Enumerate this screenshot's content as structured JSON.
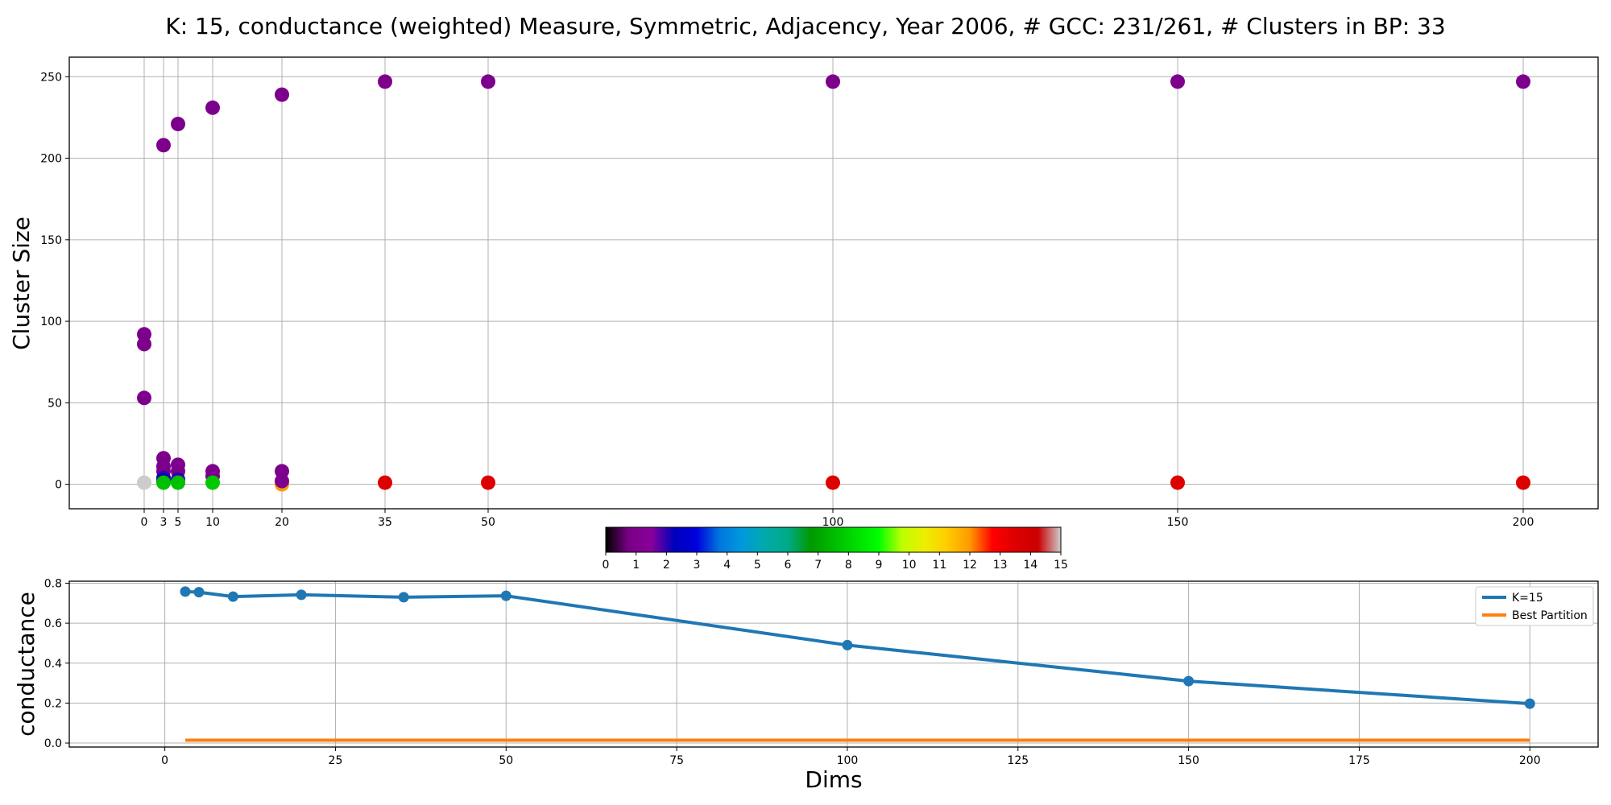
{
  "chart_data": [
    {
      "type": "scatter",
      "title": "K: 15, conductance (weighted) Measure, Symmetric, Adjacency, Year 2006, # GCC: 231/261, # Clusters in BP: 33",
      "xlabel": "",
      "ylabel": "Cluster Size",
      "xticks": [
        0,
        3,
        5,
        10,
        20,
        35,
        50,
        100,
        150,
        200
      ],
      "yticks": [
        0,
        50,
        100,
        150,
        200,
        250
      ],
      "ylim": [
        -15,
        262
      ],
      "grid": true,
      "colorbar": {
        "min": 0,
        "max": 15,
        "ticks": [
          0,
          1,
          2,
          3,
          4,
          5,
          6,
          7,
          8,
          9,
          10,
          11,
          12,
          13,
          14,
          15
        ],
        "colormap": "nipy_spectral"
      },
      "points": [
        {
          "x": 0,
          "y": 92,
          "c": 1
        },
        {
          "x": 0,
          "y": 86,
          "c": 1
        },
        {
          "x": 0,
          "y": 53,
          "c": 1
        },
        {
          "x": 0,
          "y": 1,
          "c": 15
        },
        {
          "x": 3,
          "y": 208,
          "c": 1
        },
        {
          "x": 3,
          "y": 16,
          "c": 1
        },
        {
          "x": 3,
          "y": 11,
          "c": 1
        },
        {
          "x": 3,
          "y": 8,
          "c": 1
        },
        {
          "x": 3,
          "y": 4,
          "c": 2
        },
        {
          "x": 3,
          "y": 2,
          "c": 2.3
        },
        {
          "x": 3,
          "y": 1,
          "c": 7.6
        },
        {
          "x": 5,
          "y": 221,
          "c": 1
        },
        {
          "x": 5,
          "y": 12,
          "c": 1
        },
        {
          "x": 5,
          "y": 8,
          "c": 1
        },
        {
          "x": 5,
          "y": 3,
          "c": 2
        },
        {
          "x": 5,
          "y": 1,
          "c": 7.6
        },
        {
          "x": 10,
          "y": 231,
          "c": 1
        },
        {
          "x": 10,
          "y": 8,
          "c": 1
        },
        {
          "x": 10,
          "y": 5,
          "c": 1
        },
        {
          "x": 10,
          "y": 1,
          "c": 7.8
        },
        {
          "x": 20,
          "y": 239,
          "c": 1
        },
        {
          "x": 20,
          "y": 8,
          "c": 1
        },
        {
          "x": 20,
          "y": 0,
          "c": 12
        },
        {
          "x": 20,
          "y": 2,
          "c": 1
        },
        {
          "x": 35,
          "y": 247,
          "c": 1
        },
        {
          "x": 35,
          "y": 1,
          "c": 13.5
        },
        {
          "x": 50,
          "y": 247,
          "c": 1
        },
        {
          "x": 50,
          "y": 1,
          "c": 13.5
        },
        {
          "x": 100,
          "y": 247,
          "c": 1
        },
        {
          "x": 100,
          "y": 1,
          "c": 13.5
        },
        {
          "x": 150,
          "y": 247,
          "c": 1
        },
        {
          "x": 150,
          "y": 1,
          "c": 13.5
        },
        {
          "x": 200,
          "y": 247,
          "c": 1
        },
        {
          "x": 200,
          "y": 1,
          "c": 13.5
        }
      ]
    },
    {
      "type": "line",
      "title": "",
      "xlabel": "Dims",
      "ylabel": "conductance",
      "xlim": [
        -14,
        210
      ],
      "ylim": [
        -0.02,
        0.81
      ],
      "xticks": [
        0,
        25,
        50,
        75,
        100,
        125,
        150,
        175,
        200
      ],
      "yticks": [
        0.0,
        0.2,
        0.4,
        0.6,
        0.8
      ],
      "grid": true,
      "legend_position": "upper right",
      "series": [
        {
          "name": "K=15",
          "color": "#1f77b4",
          "markers": true,
          "x": [
            3,
            5,
            10,
            20,
            35,
            50,
            100,
            150,
            200
          ],
          "y": [
            0.758,
            0.755,
            0.733,
            0.742,
            0.73,
            0.737,
            0.49,
            0.31,
            0.197
          ]
        },
        {
          "name": "Best Partition",
          "color": "#ff7f0e",
          "markers": false,
          "x": [
            3,
            200
          ],
          "y": [
            0.014,
            0.014
          ]
        }
      ]
    }
  ]
}
